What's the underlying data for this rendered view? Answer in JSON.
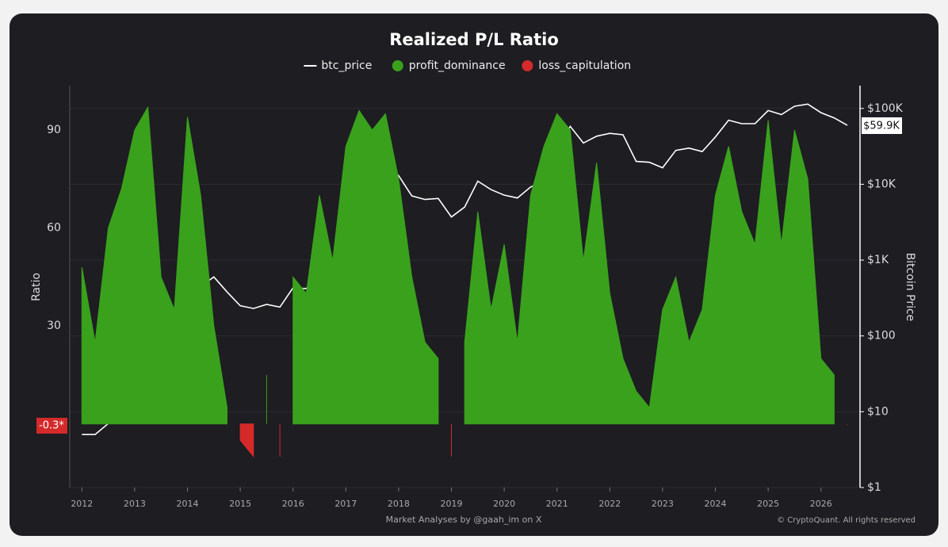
{
  "chart_data": {
    "type": "area",
    "title": "Realized P/L Ratio",
    "y_label": "Ratio",
    "y2_label": "Bitcoin Price",
    "x": [
      2012.0,
      2012.25,
      2012.5,
      2012.75,
      2013.0,
      2013.25,
      2013.5,
      2013.75,
      2014.0,
      2014.25,
      2014.5,
      2014.75,
      2015.0,
      2015.25,
      2015.5,
      2015.75,
      2016.0,
      2016.25,
      2016.5,
      2016.75,
      2017.0,
      2017.25,
      2017.5,
      2017.75,
      2018.0,
      2018.25,
      2018.5,
      2018.75,
      2019.0,
      2019.25,
      2019.5,
      2019.75,
      2020.0,
      2020.25,
      2020.5,
      2020.75,
      2021.0,
      2021.25,
      2021.5,
      2021.75,
      2022.0,
      2022.25,
      2022.5,
      2022.75,
      2023.0,
      2023.25,
      2023.5,
      2023.75,
      2024.0,
      2024.25,
      2024.5,
      2024.75,
      2025.0,
      2025.25,
      2025.5,
      2025.75,
      2026.0,
      2026.25,
      2026.5
    ],
    "series": [
      {
        "name": "btc_price",
        "color": "#ffffff",
        "axis": "y2",
        "values": [
          5,
          5,
          7,
          12,
          15,
          100,
          90,
          130,
          800,
          450,
          600,
          380,
          250,
          230,
          260,
          240,
          430,
          420,
          650,
          620,
          1000,
          1100,
          2500,
          4300,
          13000,
          7000,
          6300,
          6500,
          3700,
          5000,
          11000,
          8500,
          7200,
          6600,
          9200,
          10800,
          29000,
          58000,
          35000,
          43000,
          47000,
          45000,
          20000,
          19500,
          16500,
          28000,
          30000,
          27000,
          42000,
          70000,
          63000,
          63000,
          94000,
          83000,
          107000,
          114000,
          88000,
          75000,
          59900
        ]
      },
      {
        "name": "profit_dominance",
        "color": "#3aa11d",
        "values": [
          48,
          25,
          60,
          72,
          90,
          97,
          45,
          35,
          94,
          70,
          30,
          5,
          null,
          null,
          15,
          null,
          45,
          40,
          70,
          50,
          85,
          96,
          90,
          95,
          75,
          45,
          25,
          20,
          null,
          25,
          65,
          35,
          55,
          25,
          70,
          85,
          95,
          90,
          50,
          80,
          40,
          20,
          10,
          5,
          35,
          45,
          25,
          35,
          70,
          85,
          65,
          55,
          93,
          55,
          90,
          75,
          20,
          15,
          null
        ]
      },
      {
        "name": "loss_capitulation",
        "color": "#d42a2a",
        "values": [
          null,
          null,
          null,
          null,
          null,
          null,
          null,
          null,
          null,
          null,
          null,
          null,
          -5,
          -10,
          null,
          -10,
          null,
          null,
          null,
          null,
          null,
          null,
          null,
          null,
          null,
          null,
          null,
          null,
          -10,
          null,
          null,
          null,
          null,
          null,
          null,
          null,
          null,
          null,
          null,
          null,
          null,
          null,
          null,
          null,
          null,
          null,
          null,
          null,
          null,
          null,
          null,
          null,
          null,
          null,
          null,
          null,
          null,
          null,
          -0.3
        ]
      }
    ],
    "xlim": [
      2011.77,
      2026.74
    ],
    "xticks": [
      2012,
      2013,
      2014,
      2015,
      2016,
      2017,
      2018,
      2019,
      2020,
      2021,
      2022,
      2023,
      2024,
      2025,
      2026
    ],
    "ylim": [
      -19.5,
      103.6
    ],
    "yticks": [
      30,
      60,
      90
    ],
    "y2lim": [
      1,
      200000
    ],
    "y2log": true,
    "y2ticks": [
      {
        "value": 1,
        "label": "$1"
      },
      {
        "value": 10,
        "label": "$10"
      },
      {
        "value": 100,
        "label": "$100"
      },
      {
        "value": 1000,
        "label": "$1K"
      },
      {
        "value": 10000,
        "label": "$10K"
      },
      {
        "value": 100000,
        "label": "$100K"
      }
    ],
    "grid": true,
    "annotations": [
      {
        "text": "-0.3*",
        "value": -0.3
      },
      {
        "text": "$59.9K",
        "value": 59900
      }
    ],
    "footer_left": "Market Analyses by @gaah_im on X",
    "footer_right": "© CryptoQuant. All rights reserved"
  }
}
